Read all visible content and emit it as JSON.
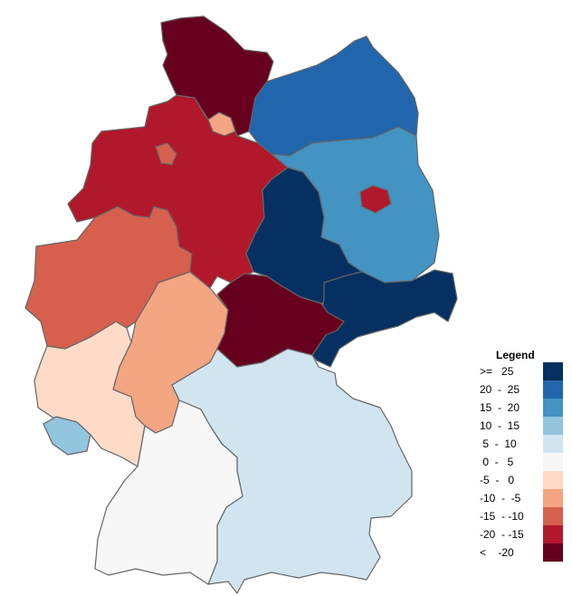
{
  "map": {
    "regions": [
      {
        "id": "schleswig-holstein",
        "class": "< -20",
        "color": "#67001f"
      },
      {
        "id": "mecklenburg-vorpommern",
        "class": "20 - 25",
        "color": "#2166ac"
      },
      {
        "id": "hamburg",
        "class": "-10 - -5",
        "color": "#f4a582"
      },
      {
        "id": "bremen",
        "class": "-15 - -10",
        "color": "#d6604d"
      },
      {
        "id": "niedersachsen",
        "class": "-20 - -15",
        "color": "#b2182b"
      },
      {
        "id": "brandenburg",
        "class": "15 - 20",
        "color": "#4393c3"
      },
      {
        "id": "berlin",
        "class": "-20 - -15",
        "color": "#b2182b"
      },
      {
        "id": "sachsen-anhalt",
        "class": ">= 25",
        "color": "#053061"
      },
      {
        "id": "sachsen",
        "class": ">= 25",
        "color": "#053061"
      },
      {
        "id": "thueringen",
        "class": "< -20",
        "color": "#67001f"
      },
      {
        "id": "nordrhein-westfalen",
        "class": "-15 - -10",
        "color": "#d6604d"
      },
      {
        "id": "hessen",
        "class": "-10 - -5",
        "color": "#f4a582"
      },
      {
        "id": "rheinland-pfalz",
        "class": "-5 - 0",
        "color": "#fddbc7"
      },
      {
        "id": "saarland",
        "class": "10 - 15",
        "color": "#92c5de"
      },
      {
        "id": "baden-wuerttemberg",
        "class": "0 - 5",
        "color": "#f7f7f7"
      },
      {
        "id": "bayern",
        "class": "5 - 10",
        "color": "#d1e5f0"
      }
    ]
  },
  "legend": {
    "title": "Legend",
    "items": [
      {
        "label": ">=   25",
        "color": "#053061"
      },
      {
        "label": "20  -  25",
        "color": "#2166ac"
      },
      {
        "label": "15  -  20",
        "color": "#4393c3"
      },
      {
        "label": "10  -  15",
        "color": "#92c5de"
      },
      {
        "label": " 5  -  10",
        "color": "#d1e5f0"
      },
      {
        "label": " 0  -   5",
        "color": "#f7f7f7"
      },
      {
        "label": "-5  -   0",
        "color": "#fddbc7"
      },
      {
        "label": "-10  -  -5",
        "color": "#f4a582"
      },
      {
        "label": "-15  - -10",
        "color": "#d6604d"
      },
      {
        "label": "-20  - -15",
        "color": "#b2182b"
      },
      {
        "label": "<    -20",
        "color": "#67001f"
      }
    ]
  }
}
